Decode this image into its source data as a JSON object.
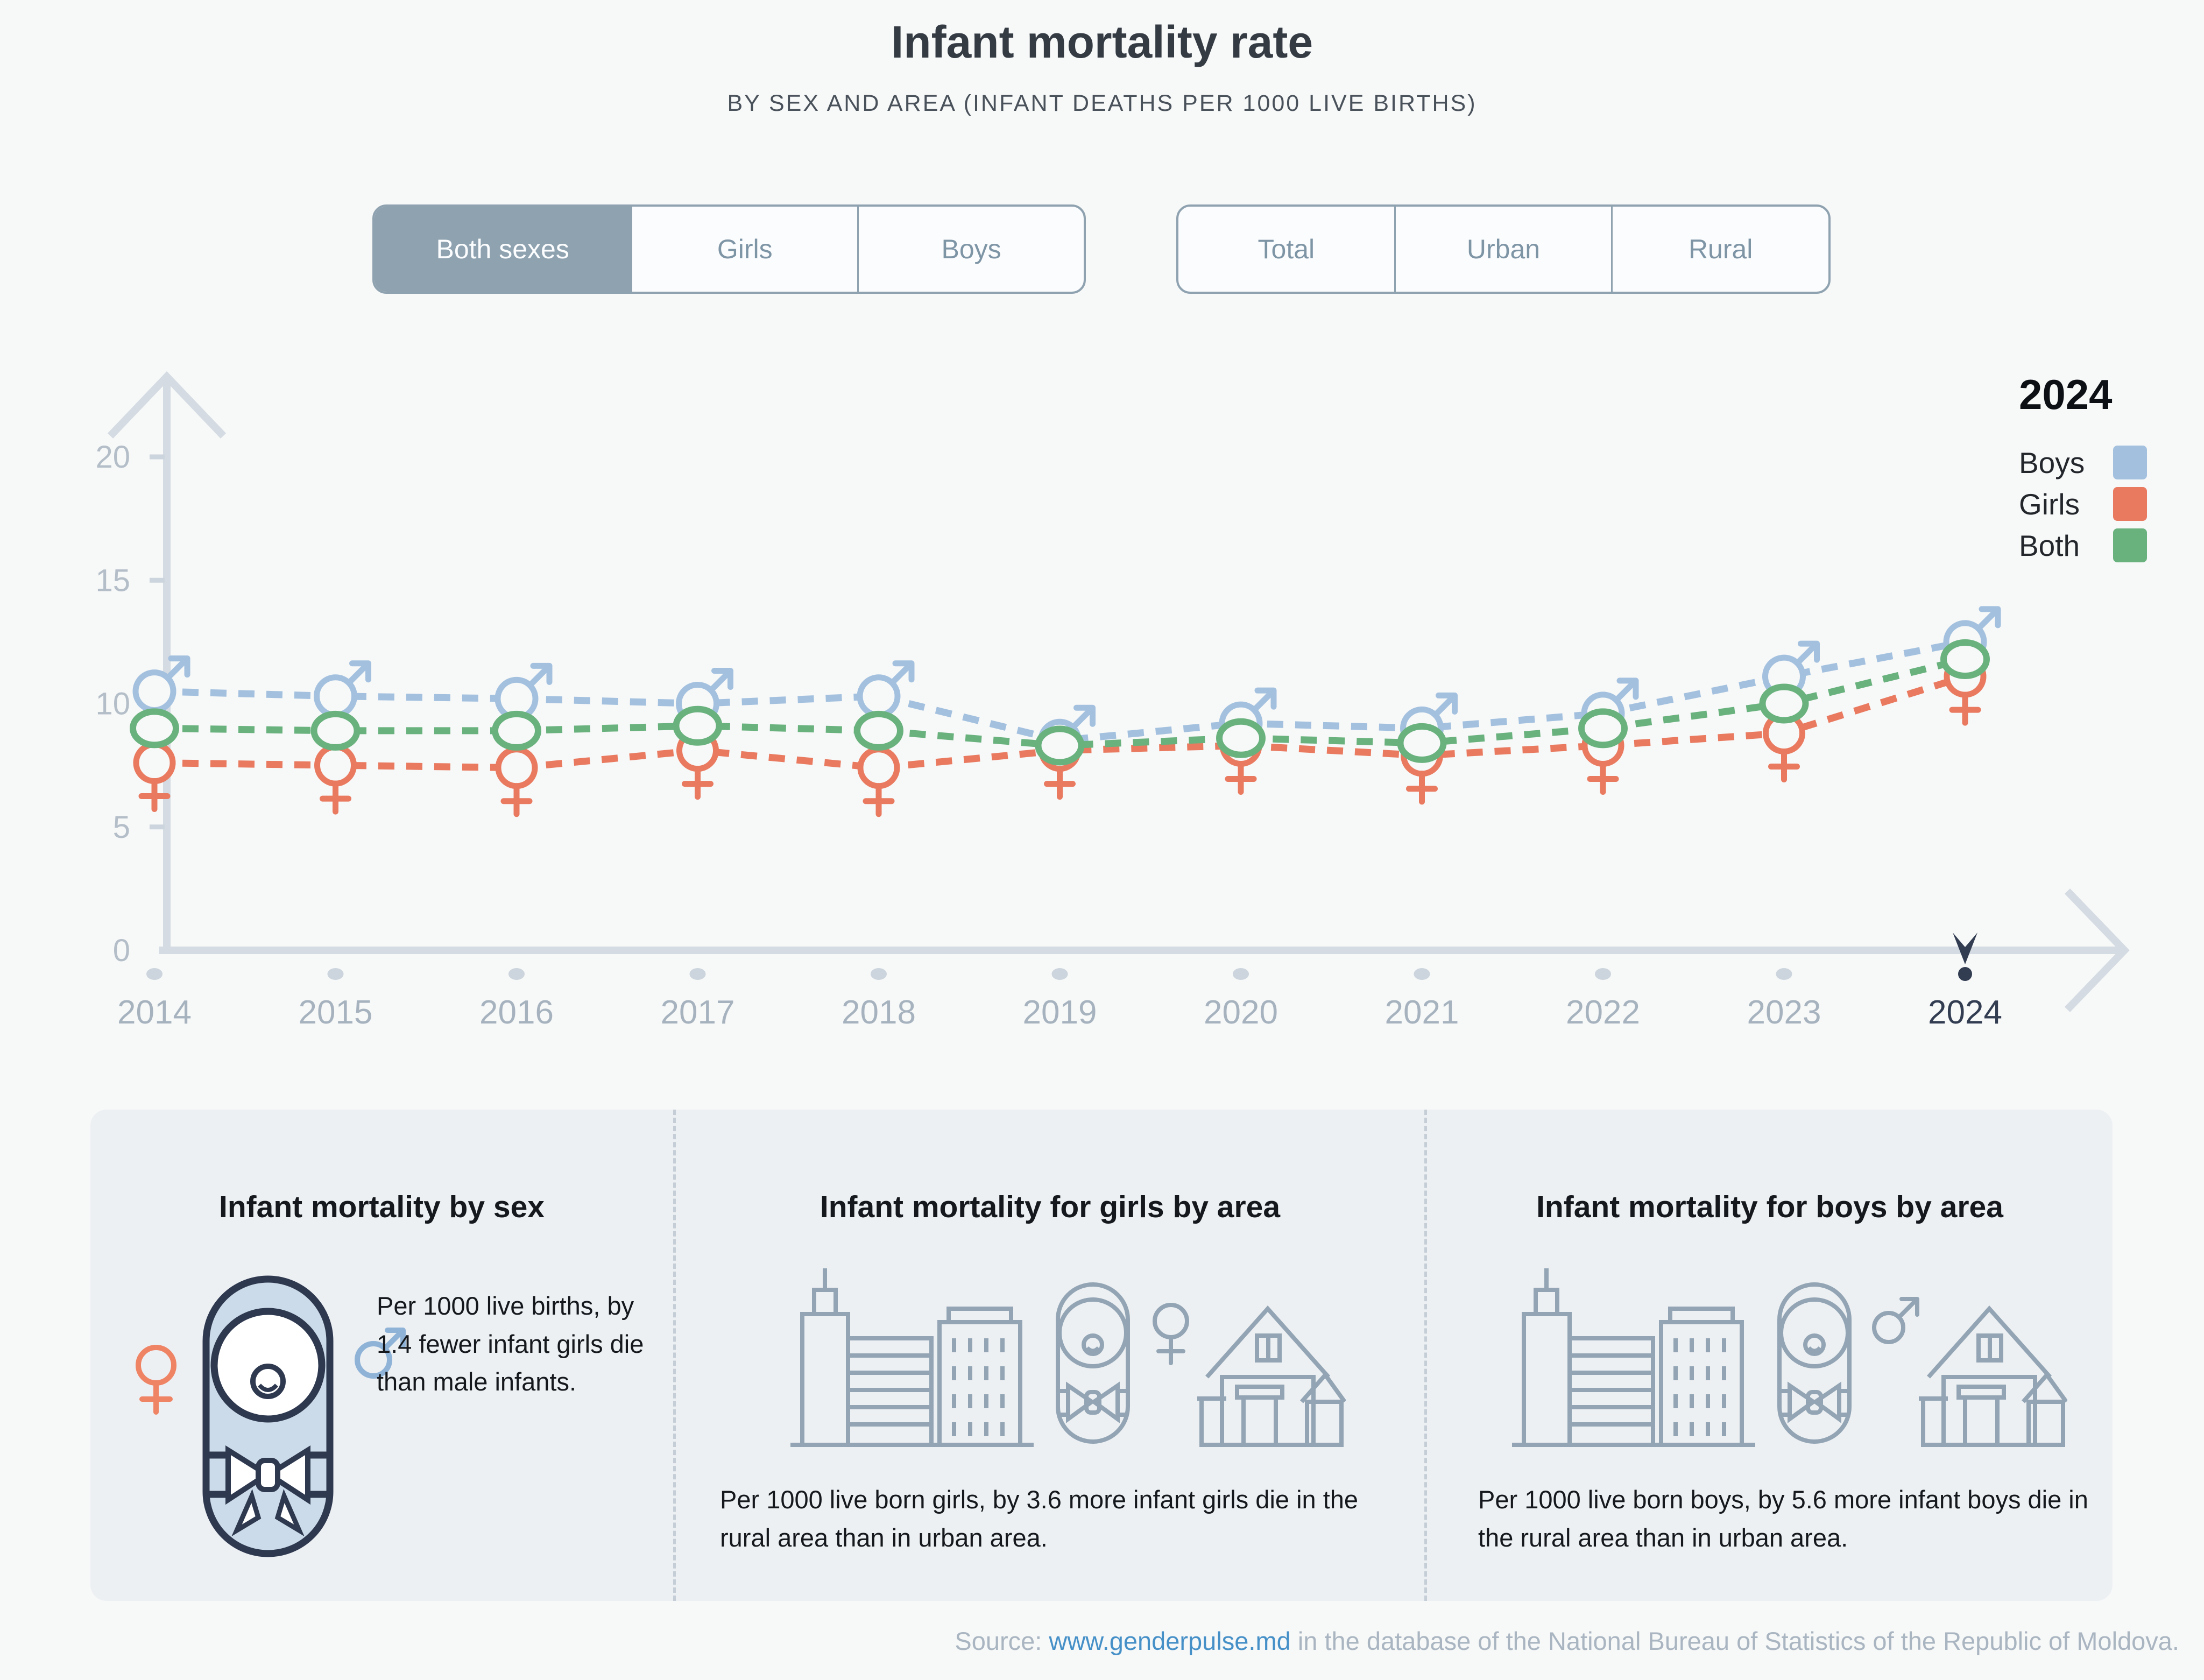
{
  "header": {
    "title": "Infant mortality rate",
    "subtitle": "BY SEX AND AREA (INFANT DEATHS PER 1000 LIVE BIRTHS)"
  },
  "toggles": {
    "sex": {
      "options": [
        "Both sexes",
        "Girls",
        "Boys"
      ],
      "selected_index": 0
    },
    "area": {
      "options": [
        "Total",
        "Urban",
        "Rural"
      ],
      "selected_index": -1
    }
  },
  "legend": {
    "year": "2024",
    "items": [
      {
        "label": "Boys",
        "color": "#a3c1df"
      },
      {
        "label": "Girls",
        "color": "#e97a5f"
      },
      {
        "label": "Both",
        "color": "#69b27e"
      }
    ]
  },
  "chart_data": {
    "type": "line",
    "title": "Infant mortality rate by sex (infant deaths per 1000 live births)",
    "x": [
      "2014",
      "2015",
      "2016",
      "2017",
      "2018",
      "2019",
      "2020",
      "2021",
      "2022",
      "2023",
      "2024"
    ],
    "series": [
      {
        "name": "Boys",
        "marker": "male",
        "color": "#a3c1df",
        "values": [
          10.5,
          10.3,
          10.2,
          10.0,
          10.3,
          8.5,
          9.2,
          9.0,
          9.6,
          11.1,
          12.5
        ]
      },
      {
        "name": "Girls",
        "marker": "female",
        "color": "#e97a5f",
        "values": [
          7.6,
          7.5,
          7.4,
          8.1,
          7.4,
          8.1,
          8.3,
          7.9,
          8.3,
          8.8,
          11.1
        ]
      },
      {
        "name": "Both",
        "marker": "circle",
        "color": "#69b27e",
        "values": [
          9.0,
          8.9,
          8.9,
          9.1,
          8.9,
          8.3,
          8.6,
          8.4,
          9.0,
          10.0,
          11.8
        ]
      }
    ],
    "ylim": [
      0,
      20
    ],
    "yticks": [
      0,
      5,
      10,
      15,
      20
    ],
    "highlight_x": "2024",
    "grid": false,
    "legend_position": "top-right"
  },
  "cards": [
    {
      "title": "Infant mortality by sex",
      "text": "Per 1000 live births, by 1.4 fewer infant girls die than male infants."
    },
    {
      "title": "Infant mortality for girls by area",
      "text": "Per 1000 live born girls, by 3.6 more infant girls die in the rural area than in urban area."
    },
    {
      "title": "Infant mortality for boys by area",
      "text": "Per 1000 live born boys, by 5.6 more infant boys die in the rural area than in urban area."
    }
  ],
  "source": {
    "prefix": "Source: ",
    "link_text": "www.genderpulse.md",
    "suffix": " in the database of the National Bureau of Statistics of the Republic of Moldova."
  },
  "colors": {
    "background": "#f7f8f8",
    "panel": "#edf0f3",
    "axis": "#d4dbe2",
    "tick_dash": "#ccd5dd",
    "tick_text": "#b4bec8",
    "year_text": "#a6b3bf",
    "highlight": "#323d52",
    "toggle_border": "#8fa2b0",
    "link": "#4690c8"
  }
}
